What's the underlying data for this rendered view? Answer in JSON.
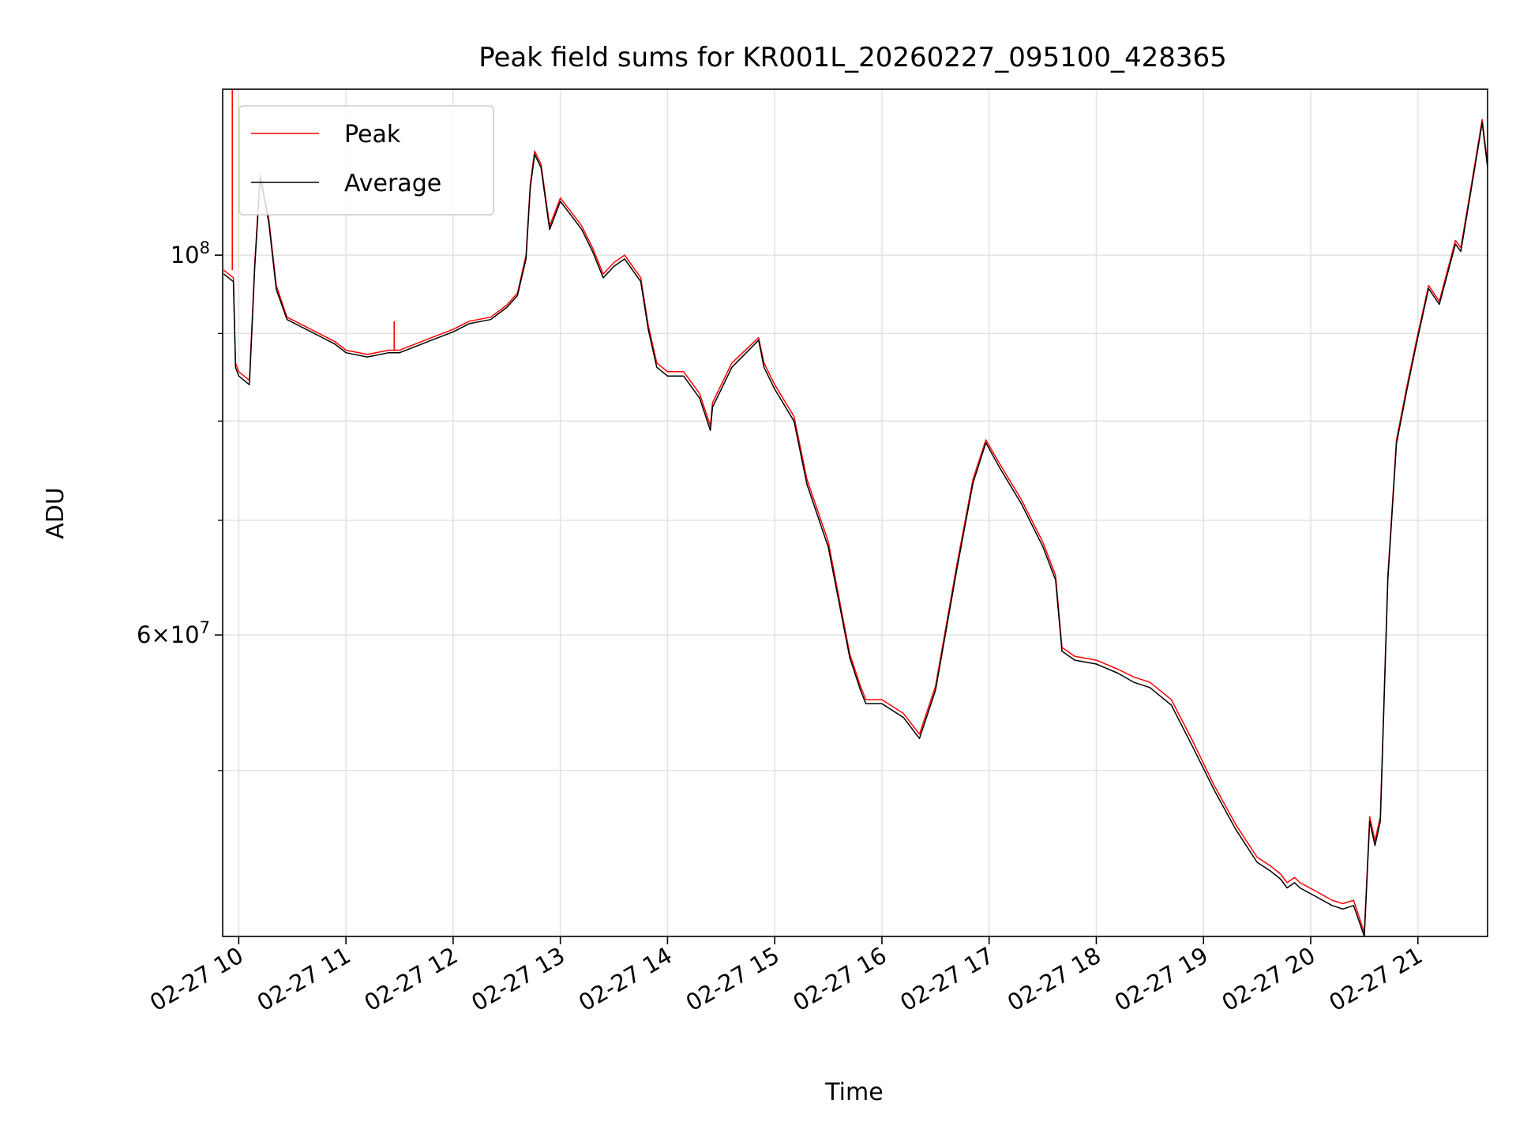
{
  "chart_data": {
    "type": "line",
    "title": "Peak field sums for KR001L_20260227_095100_428365",
    "xlabel": "Time",
    "ylabel": "ADU",
    "yscale": "log",
    "ylim": [
      40000000,
      125000000
    ],
    "x_tick_labels": [
      "02-27 10",
      "02-27 11",
      "02-27 12",
      "02-27 13",
      "02-27 14",
      "02-27 15",
      "02-27 16",
      "02-27 17",
      "02-27 18",
      "02-27 19",
      "02-27 20",
      "02-27 21"
    ],
    "x_ticks_hours": [
      10,
      11,
      12,
      13,
      14,
      15,
      16,
      17,
      18,
      19,
      20,
      21
    ],
    "xlim_hours": [
      9.85,
      21.65
    ],
    "y_tick_labels": [
      {
        "value": 100000000,
        "mantissa": "",
        "exponent": "8"
      },
      {
        "value": 60000000,
        "mantissa": "6",
        "exponent": "7"
      }
    ],
    "y_minor_ticks": [
      50000000,
      70000000,
      80000000,
      90000000
    ],
    "grid": true,
    "legend_position": "upper-left",
    "series": [
      {
        "name": "Peak",
        "color": "#ff0000",
        "x_hours": [
          9.86,
          9.95,
          9.97,
          10.0,
          10.1,
          10.15,
          10.2,
          10.28,
          10.35,
          10.45,
          10.6,
          10.75,
          10.9,
          11.0,
          11.2,
          11.4,
          11.5,
          11.6,
          11.8,
          12.0,
          12.15,
          12.35,
          12.5,
          12.6,
          12.68,
          12.72,
          12.76,
          12.82,
          12.9,
          13.0,
          13.1,
          13.2,
          13.3,
          13.4,
          13.5,
          13.6,
          13.75,
          13.82,
          13.9,
          14.0,
          14.15,
          14.3,
          14.4,
          14.42,
          14.6,
          14.85,
          14.9,
          15.0,
          15.18,
          15.3,
          15.5,
          15.7,
          15.8,
          15.85,
          16.0,
          16.2,
          16.35,
          16.5,
          16.7,
          16.85,
          16.97,
          17.1,
          17.3,
          17.5,
          17.62,
          17.68,
          17.8,
          18.0,
          18.2,
          18.35,
          18.5,
          18.7,
          18.9,
          19.1,
          19.3,
          19.5,
          19.62,
          19.72,
          19.78,
          19.85,
          19.9,
          20.05,
          20.2,
          20.3,
          20.4,
          20.5,
          20.55,
          20.6,
          20.65,
          20.72,
          20.8,
          20.9,
          21.0,
          21.1,
          21.2,
          21.35,
          21.4,
          21.5,
          21.6,
          21.65
        ],
        "values": [
          98000000,
          97000000,
          86500000,
          85500000,
          84500000,
          99000000,
          111500000,
          105000000,
          96000000,
          92000000,
          91000000,
          90000000,
          89000000,
          88000000,
          87500000,
          88000000,
          88000000,
          88500000,
          89500000,
          90500000,
          91500000,
          92000000,
          93500000,
          95000000,
          100000000,
          110000000,
          115000000,
          113000000,
          104000000,
          108000000,
          106000000,
          104000000,
          101000000,
          97500000,
          99000000,
          100000000,
          97000000,
          91000000,
          86500000,
          85500000,
          85500000,
          83000000,
          79500000,
          82000000,
          86500000,
          89500000,
          86500000,
          84000000,
          80500000,
          74000000,
          68000000,
          58500000,
          56000000,
          55000000,
          55000000,
          54000000,
          52500000,
          56000000,
          66000000,
          74000000,
          78000000,
          75500000,
          72000000,
          68000000,
          65000000,
          59000000,
          58300000,
          58000000,
          57300000,
          56700000,
          56300000,
          55000000,
          52000000,
          49000000,
          46500000,
          44500000,
          44000000,
          43500000,
          43000000,
          43300000,
          43000000,
          42500000,
          42000000,
          41800000,
          42000000,
          40200000,
          47000000,
          45500000,
          47000000,
          65000000,
          78000000,
          84000000,
          90000000,
          96000000,
          94000000,
          102000000,
          101000000,
          110000000,
          120000000,
          113000000
        ],
        "spikes": [
          {
            "x_hour": 9.94,
            "value": 125000000
          },
          {
            "x_hour": 11.45,
            "value": 91500000
          }
        ]
      },
      {
        "name": "Average",
        "color": "#000000",
        "x_hours": [
          9.86,
          9.95,
          9.97,
          10.0,
          10.1,
          10.15,
          10.2,
          10.28,
          10.35,
          10.45,
          10.6,
          10.75,
          10.9,
          11.0,
          11.2,
          11.4,
          11.5,
          11.6,
          11.8,
          12.0,
          12.15,
          12.35,
          12.5,
          12.6,
          12.68,
          12.72,
          12.76,
          12.82,
          12.9,
          13.0,
          13.1,
          13.2,
          13.3,
          13.4,
          13.5,
          13.6,
          13.75,
          13.82,
          13.9,
          14.0,
          14.15,
          14.3,
          14.4,
          14.42,
          14.6,
          14.85,
          14.9,
          15.0,
          15.18,
          15.3,
          15.5,
          15.7,
          15.8,
          15.85,
          16.0,
          16.2,
          16.35,
          16.5,
          16.7,
          16.85,
          16.97,
          17.1,
          17.3,
          17.5,
          17.62,
          17.68,
          17.8,
          18.0,
          18.2,
          18.35,
          18.5,
          18.7,
          18.9,
          19.1,
          19.3,
          19.5,
          19.62,
          19.72,
          19.78,
          19.85,
          19.9,
          20.05,
          20.2,
          20.3,
          20.4,
          20.5,
          20.55,
          20.6,
          20.65,
          20.72,
          20.8,
          20.9,
          21.0,
          21.1,
          21.2,
          21.35,
          21.4,
          21.5,
          21.6,
          21.65
        ],
        "values": [
          97500000,
          96500000,
          86000000,
          85000000,
          84000000,
          98500000,
          111000000,
          104500000,
          95500000,
          91700000,
          90700000,
          89700000,
          88700000,
          87700000,
          87200000,
          87700000,
          87700000,
          88200000,
          89200000,
          90200000,
          91200000,
          91700000,
          93200000,
          94700000,
          99500000,
          109500000,
          114500000,
          112500000,
          103500000,
          107500000,
          105500000,
          103500000,
          100500000,
          97000000,
          98500000,
          99500000,
          96500000,
          90500000,
          86000000,
          85000000,
          85000000,
          82500000,
          79000000,
          81500000,
          86000000,
          89200000,
          86000000,
          83500000,
          80000000,
          73500000,
          67500000,
          58200000,
          55700000,
          54700000,
          54700000,
          53700000,
          52200000,
          55700000,
          65600000,
          73600000,
          77700000,
          75100000,
          71600000,
          67600000,
          64600000,
          58700000,
          58000000,
          57700000,
          57000000,
          56300000,
          55900000,
          54600000,
          51600000,
          48700000,
          46200000,
          44200000,
          43700000,
          43200000,
          42700000,
          43000000,
          42700000,
          42200000,
          41700000,
          41500000,
          41700000,
          40000000,
          46700000,
          45200000,
          46700000,
          64600000,
          77600000,
          83600000,
          89600000,
          95600000,
          93600000,
          101500000,
          100500000,
          109500000,
          119500000,
          112500000
        ],
        "spikes": []
      }
    ]
  }
}
